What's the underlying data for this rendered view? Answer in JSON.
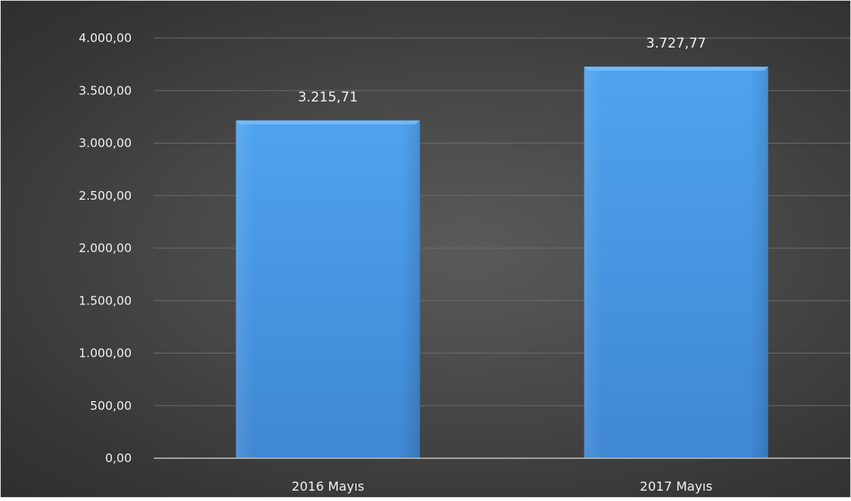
{
  "chart_data": {
    "type": "bar",
    "categories": [
      "2016 Mayıs",
      "2017 Mayıs"
    ],
    "values": [
      3215.71,
      3727.77
    ],
    "data_labels": [
      "3.215,71",
      "3.727,77"
    ],
    "ylim": [
      0,
      4000
    ],
    "yticks": [
      0,
      500,
      1000,
      1500,
      2000,
      2500,
      3000,
      3500,
      4000
    ],
    "ytick_labels": [
      "0,00",
      "500,00",
      "1.000,00",
      "1.500,00",
      "2.000,00",
      "2.500,00",
      "3.000,00",
      "3.500,00",
      "4.000,00"
    ],
    "grid": true,
    "title": "",
    "xlabel": "",
    "ylabel": "",
    "colors": {
      "bar": "#4a9de9",
      "bar_dark": "#3a82cc",
      "gridline": "#6a6a6a",
      "axis_line": "#bfbfbf",
      "text": "#f2f2f2"
    }
  }
}
